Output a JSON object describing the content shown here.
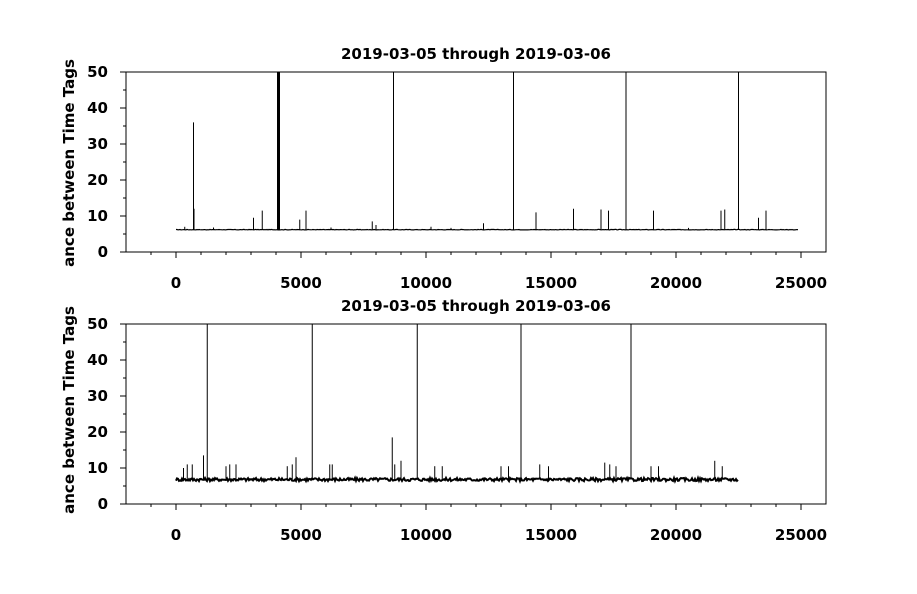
{
  "chart_data": [
    {
      "type": "line",
      "title": "2019-03-05 through 2019-03-06",
      "xlabel": "",
      "ylabel": "ance between Time Tags",
      "xlim": [
        -2000,
        26000
      ],
      "ylim": [
        0,
        50
      ],
      "xticks": [
        0,
        5000,
        10000,
        15000,
        20000,
        25000
      ],
      "xtick_labels": [
        "0",
        "5000",
        "10000",
        "15000",
        "20000",
        "25000"
      ],
      "yticks": [
        0,
        10,
        20,
        30,
        40,
        50
      ],
      "ytick_labels": [
        "0",
        "10",
        "20",
        "30",
        "40",
        "50"
      ],
      "series": [
        {
          "baseline": 6.2,
          "x_range": [
            0,
            24900
          ],
          "spikes": [
            [
              700,
              36
            ],
            [
              720,
              12
            ],
            [
              4080,
              50
            ],
            [
              4100,
              50
            ],
            [
              4120,
              50
            ],
            [
              8700,
              50
            ],
            [
              13500,
              50
            ],
            [
              18000,
              50
            ],
            [
              22500,
              50
            ],
            [
              3100,
              9.5
            ],
            [
              3450,
              11.5
            ],
            [
              4950,
              9
            ],
            [
              5200,
              11.5
            ],
            [
              7850,
              8.5
            ],
            [
              8000,
              7.5
            ],
            [
              10200,
              7
            ],
            [
              12300,
              8
            ],
            [
              14400,
              11
            ],
            [
              15900,
              12
            ],
            [
              17000,
              11.8
            ],
            [
              17300,
              11.5
            ],
            [
              19100,
              11.5
            ],
            [
              21800,
              11.5
            ],
            [
              21950,
              11.8
            ],
            [
              23300,
              9.5
            ],
            [
              23600,
              11.5
            ],
            [
              350,
              7
            ],
            [
              1500,
              6.8
            ],
            [
              6200,
              6.8
            ],
            [
              11000,
              6.7
            ],
            [
              20500,
              6.7
            ]
          ]
        }
      ]
    },
    {
      "type": "line",
      "title": "2019-03-05 through 2019-03-06",
      "xlabel": "",
      "ylabel": "ance between Time Tags",
      "xlim": [
        -2000,
        26000
      ],
      "ylim": [
        0,
        50
      ],
      "xticks": [
        0,
        5000,
        10000,
        15000,
        20000,
        25000
      ],
      "xtick_labels": [
        "0",
        "5000",
        "10000",
        "15000",
        "20000",
        "25000"
      ],
      "yticks": [
        0,
        10,
        20,
        30,
        40,
        50
      ],
      "ytick_labels": [
        "0",
        "10",
        "20",
        "30",
        "40",
        "50"
      ],
      "series": [
        {
          "baseline": 6.8,
          "x_range": [
            0,
            22500
          ],
          "spikes": [
            [
              1250,
              50
            ],
            [
              5450,
              50
            ],
            [
              9650,
              50
            ],
            [
              13800,
              50
            ],
            [
              18200,
              50
            ],
            [
              300,
              10
            ],
            [
              450,
              11
            ],
            [
              650,
              11
            ],
            [
              1100,
              13.5
            ],
            [
              2000,
              10.5
            ],
            [
              2150,
              11
            ],
            [
              2400,
              11
            ],
            [
              4450,
              10.5
            ],
            [
              4650,
              11
            ],
            [
              4800,
              13
            ],
            [
              6150,
              11
            ],
            [
              6250,
              11
            ],
            [
              8650,
              18.5
            ],
            [
              8750,
              11
            ],
            [
              9000,
              12
            ],
            [
              10350,
              10.5
            ],
            [
              10650,
              10.5
            ],
            [
              13000,
              10.5
            ],
            [
              13300,
              10.5
            ],
            [
              14550,
              11
            ],
            [
              14900,
              10.5
            ],
            [
              17150,
              11.5
            ],
            [
              17350,
              11
            ],
            [
              17600,
              10.5
            ],
            [
              19000,
              10.5
            ],
            [
              19300,
              10.5
            ],
            [
              21550,
              12
            ],
            [
              21850,
              10.5
            ]
          ]
        }
      ]
    }
  ]
}
